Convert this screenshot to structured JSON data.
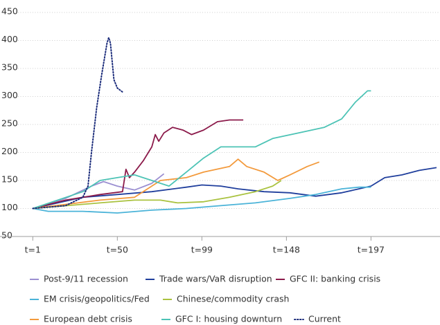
{
  "chart_data": {
    "type": "line",
    "xlim": [
      -18,
      237
    ],
    "xticks": [
      {
        "value": 1,
        "label": "t=1"
      },
      {
        "value": 50,
        "label": "t=50"
      },
      {
        "value": 99,
        "label": "t=99"
      },
      {
        "value": 148,
        "label": "t=148"
      },
      {
        "value": 197,
        "label": "t=197"
      }
    ],
    "ylim": [
      50,
      450
    ],
    "yticks": [
      50,
      100,
      150,
      200,
      250,
      300,
      350,
      400,
      450
    ],
    "grid": true,
    "legend": "bottom",
    "series": [
      {
        "name": "Post-9/11 recession",
        "color": "#9b8fd1",
        "style": "solid",
        "x": [
          1,
          20,
          35,
          42,
          50,
          60,
          70,
          77
        ],
        "values": [
          100,
          118,
          140,
          148,
          140,
          133,
          145,
          162
        ]
      },
      {
        "name": "Trade wars/VaR disruption",
        "color": "#1f3e9c",
        "style": "solid",
        "x": [
          1,
          30,
          50,
          70,
          90,
          99,
          110,
          120,
          135,
          150,
          165,
          180,
          190,
          197,
          205,
          215,
          225,
          235
        ],
        "values": [
          100,
          120,
          125,
          130,
          138,
          142,
          140,
          135,
          130,
          128,
          122,
          128,
          135,
          140,
          155,
          160,
          168,
          173
        ]
      },
      {
        "name": "GFC II: banking crisis",
        "color": "#8b1a4a",
        "style": "solid",
        "x": [
          1,
          20,
          40,
          53,
          55,
          57,
          60,
          65,
          70,
          72,
          74,
          77,
          82,
          88,
          93,
          100,
          108,
          115,
          123
        ],
        "values": [
          100,
          115,
          125,
          130,
          170,
          155,
          165,
          185,
          210,
          232,
          220,
          235,
          245,
          240,
          232,
          240,
          255,
          258,
          258
        ]
      },
      {
        "name": "EM crisis/geopolitics/Fed",
        "color": "#4ab3d8",
        "style": "solid",
        "x": [
          1,
          10,
          30,
          50,
          70,
          90,
          110,
          130,
          150,
          165,
          180,
          190,
          197
        ],
        "values": [
          100,
          95,
          95,
          92,
          97,
          100,
          105,
          110,
          118,
          125,
          135,
          138,
          138
        ]
      },
      {
        "name": "Chinese/commodity crash",
        "color": "#a9c23f",
        "style": "solid",
        "x": [
          1,
          40,
          60,
          75,
          85,
          100,
          115,
          130,
          140,
          145
        ],
        "values": [
          100,
          110,
          115,
          115,
          110,
          112,
          120,
          130,
          140,
          150
        ]
      },
      {
        "name": "European debt crisis",
        "color": "#f39a3c",
        "style": "solid",
        "x": [
          1,
          40,
          60,
          75,
          90,
          100,
          115,
          120,
          125,
          135,
          143,
          150,
          160,
          167
        ],
        "values": [
          100,
          115,
          120,
          150,
          155,
          165,
          175,
          188,
          175,
          165,
          150,
          160,
          175,
          183
        ]
      },
      {
        "name": "GFC I: housing downturn",
        "color": "#4cc3b5",
        "style": "solid",
        "x": [
          1,
          30,
          40,
          50,
          60,
          70,
          80,
          90,
          100,
          110,
          130,
          140,
          155,
          170,
          180,
          188,
          195,
          197
        ],
        "values": [
          100,
          130,
          150,
          155,
          160,
          150,
          140,
          165,
          190,
          210,
          210,
          225,
          235,
          245,
          260,
          290,
          310,
          310
        ]
      },
      {
        "name": "Current",
        "color": "#1a2b7a",
        "style": "dotted",
        "x": [
          1,
          20,
          30,
          33,
          35,
          38,
          41,
          44,
          45,
          46,
          48,
          50,
          53
        ],
        "values": [
          100,
          105,
          120,
          140,
          200,
          280,
          340,
          395,
          405,
          395,
          330,
          315,
          308
        ]
      }
    ]
  }
}
